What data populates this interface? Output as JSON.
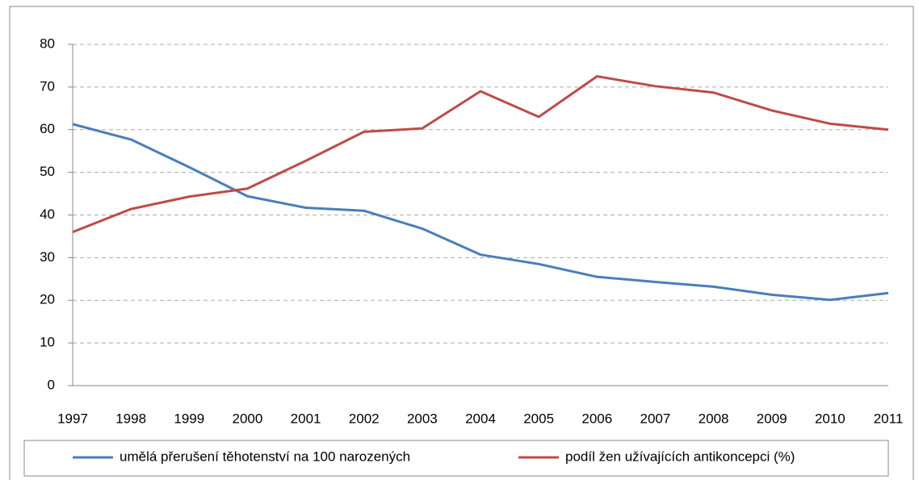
{
  "chart_data": {
    "type": "line",
    "categories": [
      "1997",
      "1998",
      "1999",
      "2000",
      "2001",
      "2002",
      "2003",
      "2004",
      "2005",
      "2006",
      "2007",
      "2008",
      "2009",
      "2010",
      "2011"
    ],
    "series": [
      {
        "name": "umělá přerušení těhotenství na 100 narozených",
        "color": "#4a7ebb",
        "values": [
          61.3,
          57.7,
          51.2,
          44.4,
          41.7,
          41.0,
          36.8,
          30.7,
          28.5,
          25.5,
          24.3,
          23.2,
          21.3,
          20.1,
          21.7
        ]
      },
      {
        "name": "podíl žen užívajících antikoncepci (%)",
        "color": "#be4b48",
        "values": [
          36.0,
          41.4,
          44.3,
          46.2,
          52.7,
          59.5,
          60.3,
          69.0,
          63.0,
          72.5,
          70.2,
          68.7,
          64.5,
          61.4,
          60.0
        ]
      }
    ],
    "ylim": [
      0,
      80
    ],
    "yticks": [
      0,
      10,
      20,
      30,
      40,
      50,
      60,
      70,
      80
    ],
    "grid": true,
    "legend": "bottom"
  }
}
